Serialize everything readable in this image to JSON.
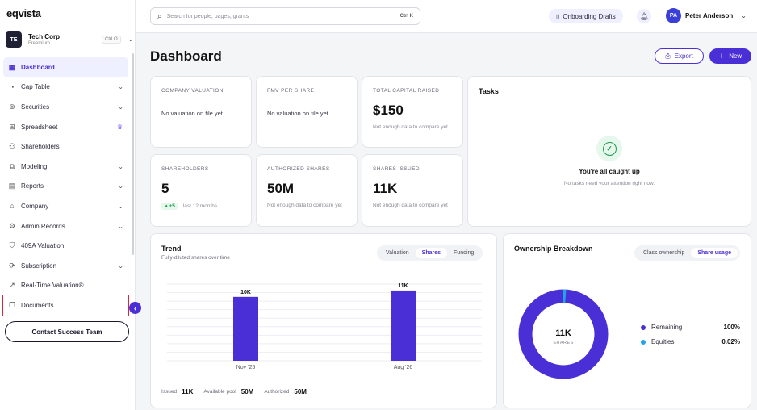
{
  "app": {
    "logo": "eqvista"
  },
  "org": {
    "initials": "TE",
    "name": "Tech Corp",
    "plan": "Freemium",
    "shortcut": "Ctrl O"
  },
  "sidebar": {
    "items": [
      {
        "label": "Dashboard",
        "icon": "grid-icon",
        "active": true
      },
      {
        "label": "Cap Table",
        "icon": "pie-icon",
        "chevron": true
      },
      {
        "label": "Securities",
        "icon": "coins-icon",
        "chevron": true
      },
      {
        "label": "Spreadsheet",
        "icon": "table-icon",
        "crown": true
      },
      {
        "label": "Shareholders",
        "icon": "users-icon"
      },
      {
        "label": "Modeling",
        "icon": "model-icon",
        "chevron": true
      },
      {
        "label": "Reports",
        "icon": "report-icon",
        "chevron": true
      },
      {
        "label": "Company",
        "icon": "company-icon",
        "chevron": true
      },
      {
        "label": "Admin Records",
        "icon": "admin-icon",
        "chevron": true
      },
      {
        "label": "409A Valuation",
        "icon": "shield-icon"
      },
      {
        "label": "Subscription",
        "icon": "subscription-icon",
        "chevron": true
      },
      {
        "label": "Real-Time Valuation®",
        "icon": "trend-icon"
      },
      {
        "label": "Documents",
        "icon": "documents-icon",
        "highlight": true
      }
    ],
    "contact_label": "Contact Success Team"
  },
  "topbar": {
    "search_placeholder": "Search for people, pages, grants",
    "search_shortcut": "Ctrl K",
    "onboarding_label": "Onboarding Drafts",
    "user_initials": "PA",
    "user_name": "Peter Anderson"
  },
  "page": {
    "title": "Dashboard",
    "export_label": "Export",
    "new_label": "New"
  },
  "kpis": {
    "company_valuation": {
      "label": "COMPANY VALUATION",
      "empty": "No valuation on file yet"
    },
    "fmv_per_share": {
      "label": "FMV PER SHARE",
      "empty": "No valuation on file yet"
    },
    "total_capital_raised": {
      "label": "TOTAL CAPITAL RAISED",
      "value": "$150",
      "note": "Not enough data to compare yet"
    },
    "shareholders": {
      "label": "SHAREHOLDERS",
      "value": "5",
      "delta": "▲+5",
      "period": "last 12 months"
    },
    "authorized_shares": {
      "label": "AUTHORIZED SHARES",
      "value": "50M",
      "note": "Not enough data to compare yet"
    },
    "shares_issued": {
      "label": "SHARES ISSUED",
      "value": "11K",
      "note": "Not enough data to compare yet"
    }
  },
  "tasks": {
    "title": "Tasks",
    "heading": "You're all caught up",
    "sub": "No tasks need your attention right now."
  },
  "trend": {
    "title": "Trend",
    "subtitle": "Fully-diluted shares over time",
    "tabs": [
      "Valuation",
      "Shares",
      "Funding"
    ],
    "active_tab": "Shares",
    "footer": [
      {
        "label": "Issued",
        "value": "11K"
      },
      {
        "label": "Available pool",
        "value": "50M"
      },
      {
        "label": "Authorized",
        "value": "50M"
      }
    ]
  },
  "ownership": {
    "title": "Ownership Breakdown",
    "tabs": [
      "Class ownership",
      "Share usage"
    ],
    "active_tab": "Share usage",
    "center_value": "11K",
    "center_label": "SHARES",
    "legend": [
      {
        "label": "Remaining",
        "pct": "100%",
        "color": "#4a2fd6"
      },
      {
        "label": "Equities",
        "pct": "0.02%",
        "color": "#1fa4e8"
      }
    ]
  },
  "chart_data": [
    {
      "type": "bar",
      "categories": [
        "Nov '25",
        "Aug '26"
      ],
      "values": [
        10000,
        11000
      ],
      "data_labels": [
        "10K",
        "11K"
      ],
      "ylim": [
        0,
        12000
      ],
      "grid": true,
      "color": "#4a2fd6"
    },
    {
      "type": "pie",
      "labels": [
        "Remaining",
        "Equities"
      ],
      "values": [
        99.98,
        0.02
      ],
      "colors": [
        "#4a2fd6",
        "#1fa4e8"
      ]
    }
  ]
}
